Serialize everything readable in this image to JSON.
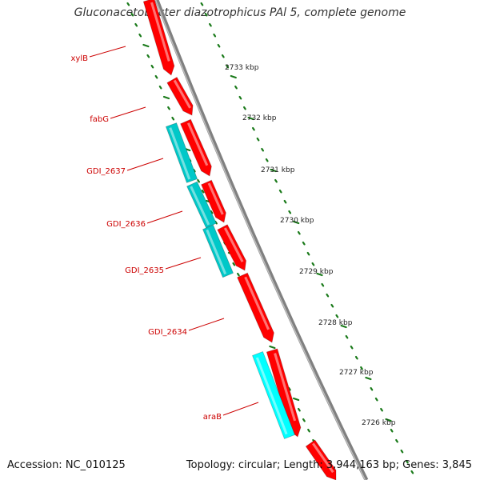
{
  "title": "Gluconacetobacter diazotrophicus PAl 5, complete genome",
  "footer": {
    "accession": "Accession: NC_010125",
    "summary": "Topology: circular; Length: 3,944,163 bp; Genes: 3,845"
  },
  "colors": {
    "forward_cds": "#ff0000",
    "reverse_cds": "#00c8c8",
    "reverse_cds_light": "#00ffff",
    "backbone": "#808080",
    "tick": "#1a7a1a",
    "gene_label": "#cc0000",
    "ruler_label": "#222222"
  },
  "ruler_labels": [
    "2733 kbp",
    "2732 kbp",
    "2731 kbp",
    "2730 kbp",
    "2729 kbp",
    "2728 kbp",
    "2727 kbp",
    "2726 kbp"
  ],
  "gene_labels": [
    "xylB",
    "fabG",
    "GDI_2637",
    "GDI_2636",
    "GDI_2635",
    "GDI_2634",
    "araB"
  ]
}
